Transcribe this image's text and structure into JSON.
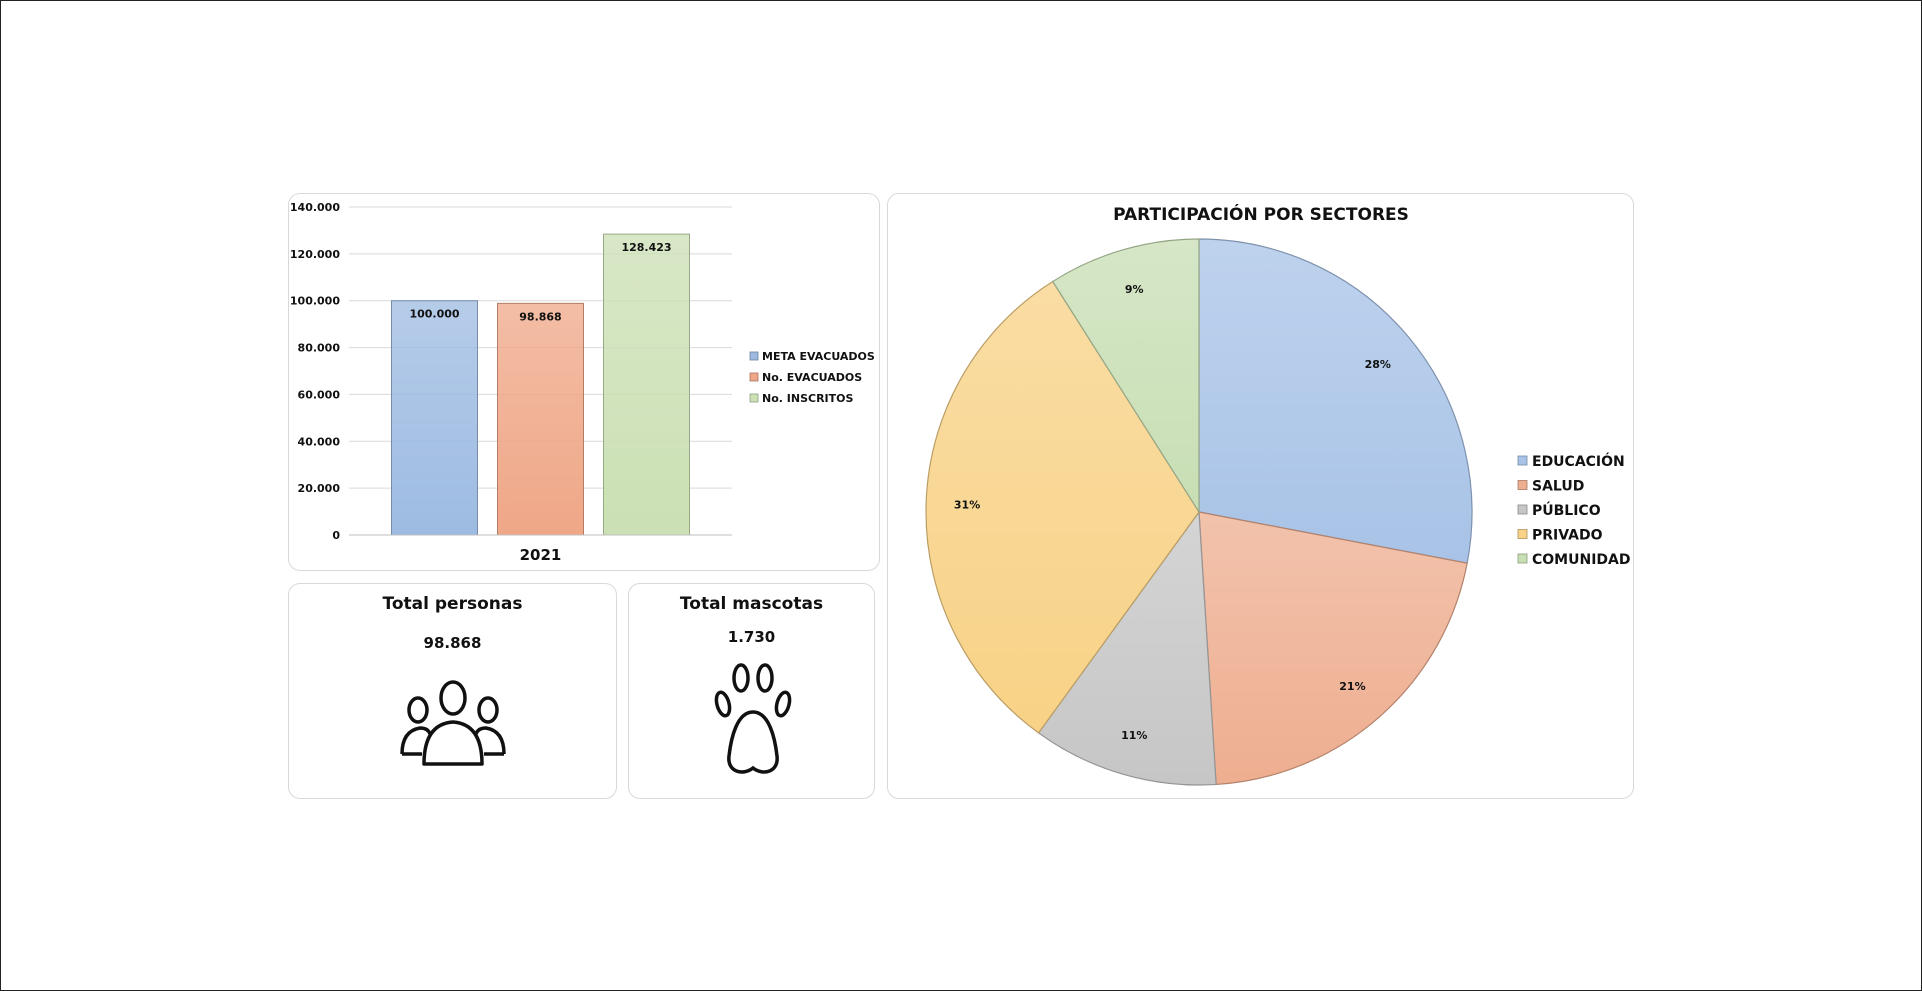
{
  "colors": {
    "meta": "#9dbbe2",
    "evacuados": "#efa787",
    "inscritos": "#cbe0b4",
    "educacion": "#a8c3e7",
    "salud": "#eeae90",
    "publico": "#c6c6c6",
    "privado": "#f8d286",
    "comunidad": "#c8deb4"
  },
  "chart_data": [
    {
      "type": "bar",
      "categories": [
        "2021"
      ],
      "series": [
        {
          "name": "META EVACUADOS",
          "values": [
            100000
          ],
          "label": "100.000",
          "color_key": "meta"
        },
        {
          "name": "No. EVACUADOS",
          "values": [
            98868
          ],
          "label": "98.868",
          "color_key": "evacuados"
        },
        {
          "name": "No. INSCRITOS",
          "values": [
            128423
          ],
          "label": "128.423",
          "color_key": "inscritos"
        }
      ],
      "ylim": [
        0,
        140000
      ],
      "yticks": [
        0,
        20000,
        40000,
        60000,
        80000,
        100000,
        120000,
        140000
      ],
      "ytick_labels": [
        "0",
        "20.000",
        "40.000",
        "60.000",
        "80.000",
        "100.000",
        "120.000",
        "140.000"
      ],
      "grid": true,
      "legend": "right"
    },
    {
      "type": "pie",
      "title": "PARTICIPACIÓN POR SECTORES",
      "slices": [
        {
          "name": "EDUCACIÓN",
          "value": 28,
          "label": "28%",
          "color_key": "educacion"
        },
        {
          "name": "SALUD",
          "value": 21,
          "label": "21%",
          "color_key": "salud"
        },
        {
          "name": "PÚBLICO",
          "value": 11,
          "label": "11%",
          "color_key": "publico"
        },
        {
          "name": "PRIVADO",
          "value": 31,
          "label": "31%",
          "color_key": "privado"
        },
        {
          "name": "COMUNIDAD",
          "value": 9,
          "label": "9%",
          "color_key": "comunidad"
        }
      ],
      "legend": "right"
    }
  ],
  "kpis": {
    "personas": {
      "title": "Total personas",
      "value": "98.868",
      "icon": "people-group-icon"
    },
    "mascotas": {
      "title": "Total mascotas",
      "value": "1.730",
      "icon": "paw-print-icon"
    }
  }
}
